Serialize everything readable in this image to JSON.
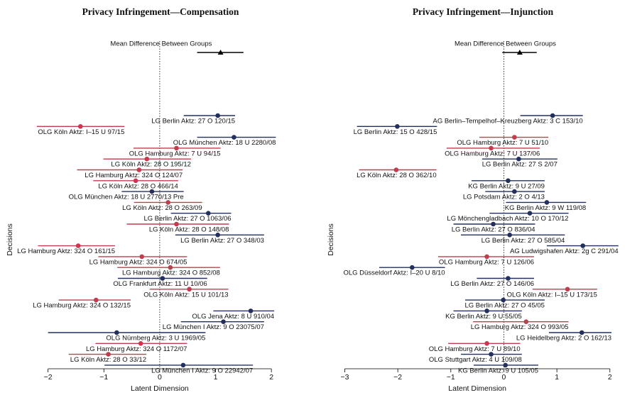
{
  "chart_data": [
    {
      "type": "forest",
      "title": "Privacy Infringement—Compensation",
      "xlabel": "Latent Dimension",
      "ylabel": "Decisions",
      "xlim": [
        -2.25,
        2.1
      ],
      "xticks": [
        {
          "value": -2,
          "label": "−2"
        },
        {
          "value": -1,
          "label": "−1"
        },
        0,
        1,
        2
      ],
      "reference_line": 0,
      "mean_difference": {
        "label": "Mean Difference Between Groups",
        "estimate": 1.09,
        "lower": 0.67,
        "upper": 1.5
      },
      "labels": [
        "LG Berlin Aktz: 27 O 120/15",
        "OLG Köln Aktz: I–15 U 97/15",
        "OLG München Aktz: 18 U 2280/08",
        "OLG Hamburg Aktz: 7 U 94/15",
        "LG Köln Aktz: 28 O 195/12",
        "LG Hamburg Aktz: 324 O 124/07",
        "LG Köln Aktz: 28 O 466/14",
        "OLG München Aktz: 18 U 2770/13 Pre",
        "LG Köln Aktz: 28 O 263/09",
        "LG Berlin Aktz: 27 O 1063/06",
        "LG Köln Aktz: 28 O 148/08",
        "LG Berlin Aktz: 27 O 348/03",
        "LG Hamburg Aktz: 324 O 161/15",
        "LG Hamburg Aktz: 324 O 674/05",
        "LG Hamburg Aktz: 324 O 852/08",
        "OLG Frankfurt Aktz: 11 U 10/06",
        "OLG Köln Aktz: 15 U 101/13",
        "LG Hamburg Aktz: 324 O 132/15",
        "OLG Jena Aktz: 8 U 910/04",
        "LG München I Aktz: 9 O 23075/07",
        "OLG Nürnberg Aktz: 3 U 1969/05",
        "LG Hamburg Aktz: 324 O 1172/07",
        "LG Köln Aktz: 28 O 33/12",
        "LG München I Aktz: 9 O 22942/07"
      ],
      "estimates": [
        1.04,
        -1.42,
        1.33,
        0.3,
        -0.23,
        -0.37,
        -0.43,
        -0.14,
        0.15,
        0.87,
        0.3,
        1.04,
        -1.46,
        -0.32,
        0.19,
        0.05,
        0.53,
        -1.14,
        1.63,
        1.14,
        -0.77,
        -0.34,
        -0.92,
        0.42
      ],
      "lower": [
        0.43,
        -2.2,
        0.67,
        -0.47,
        -1.01,
        -1.48,
        -1.19,
        -0.68,
        -0.46,
        0.2,
        -0.59,
        0.28,
        -2.18,
        -1.1,
        -0.76,
        -0.75,
        -0.18,
        -1.81,
        0.96,
        0.38,
        -2.0,
        -1.15,
        -1.63,
        -0.99
      ],
      "upper": [
        1.35,
        -0.63,
        2.08,
        1.09,
        0.56,
        0.41,
        0.33,
        0.43,
        0.76,
        1.28,
        1.24,
        1.87,
        -0.8,
        0.49,
        1.08,
        0.85,
        1.23,
        -0.52,
        2.05,
        1.87,
        0.82,
        0.49,
        -0.24,
        1.67
      ],
      "colors": [
        "#23305e",
        "#c23b4e",
        "#23305e",
        "#c23b4e",
        "#c23b4e",
        "#c23b4e",
        "#c23b4e",
        "#23305e",
        "#c23b4e",
        "#23305e",
        "#c23b4e",
        "#23305e",
        "#c23b4e",
        "#c23b4e",
        "#c23b4e",
        "#23305e",
        "#c23b4e",
        "#c23b4e",
        "#23305e",
        "#23305e",
        "#23305e",
        "#c23b4e",
        "#c23b4e",
        "#23305e"
      ]
    },
    {
      "type": "forest",
      "title": "Privacy Infringement—Injunction",
      "xlabel": "Latent Dimension",
      "ylabel": "Decisions",
      "xlim": [
        -3.1,
        2.15
      ],
      "xticks": [
        {
          "value": -3,
          "label": "−3"
        },
        {
          "value": -2,
          "label": "−2"
        },
        {
          "value": -1,
          "label": "−1"
        },
        0,
        1,
        2
      ],
      "reference_line": 0,
      "mean_difference": {
        "label": "Mean Difference Between Groups",
        "estimate": 0.3,
        "lower": -0.03,
        "upper": 0.62
      },
      "labels": [
        "AG Berlin–Tempelhof–Kreuzberg Aktz: 3 C 153/10",
        "LG Berlin Aktz: 15 O 428/15",
        "OLG Hamburg Aktz: 7 U 51/10",
        "OLG Hamburg Aktz: 7 U 137/06",
        "LG Berlin Aktz: 27 S 2/07",
        "LG Köln Aktz: 28 O 362/10",
        "KG Berlin Aktz: 9 U 27/09",
        "LG Potsdam Aktz: 2 O 4/13",
        "KG Berlin Aktz: 9 W 119/08",
        "LG Mönchengladbach Aktz: 10 O 170/12",
        "LG Berlin Aktz: 27 O 836/04",
        "LG Berlin Aktz: 27 O 585/04",
        "AG Ludwigshafen Aktz: 2g C 291/04",
        "OLG Hamburg Aktz: 7 U 126/06",
        "OLG Düsseldorf Aktz: I–20 U 8/10",
        "LG Berlin Aktz: 27 O 146/06",
        "OLG Köln Aktz: I–15 U 173/15",
        "LG Berlin Aktz: 27 O 45/05",
        "KG Berlin Aktz: 9 U 55/05",
        "LG Hamburg Aktz: 324 O 993/05",
        "LG Heidelberg Aktz: 2 O 162/13",
        "OLG Hamburg Aktz: 7 U 89/10",
        "OLG Stuttgart Aktz: 4 U 109/08",
        "KG Berlin Aktz: 9 U 105/05"
      ],
      "estimates": [
        0.92,
        -2.01,
        0.2,
        -0.24,
        0.28,
        -2.03,
        0.08,
        0.2,
        0.81,
        0.49,
        -0.2,
        0.11,
        1.49,
        -0.32,
        -1.73,
        0.08,
        1.2,
        -0.01,
        -0.32,
        0.42,
        1.47,
        -0.32,
        -0.24,
        0.03
      ],
      "lower": [
        0.31,
        -2.77,
        -0.46,
        -1.08,
        -0.41,
        -2.73,
        -0.61,
        -0.35,
        0.04,
        -0.27,
        -0.95,
        -0.81,
        0.81,
        -1.24,
        -2.35,
        -0.51,
        0.54,
        -0.73,
        -0.95,
        -0.58,
        0.85,
        -1.05,
        -0.81,
        -0.57
      ],
      "upper": [
        1.49,
        -1.26,
        0.84,
        0.68,
        1.01,
        -1.27,
        0.77,
        0.77,
        1.55,
        1.22,
        0.59,
        1.15,
        2.16,
        0.57,
        -1.11,
        0.57,
        1.76,
        0.77,
        0.34,
        1.22,
        2.03,
        0.31,
        0.34,
        0.65
      ],
      "colors": [
        "#23305e",
        "#23305e",
        "#c23b4e",
        "#c23b4e",
        "#23305e",
        "#c23b4e",
        "#23305e",
        "#23305e",
        "#23305e",
        "#23305e",
        "#23305e",
        "#23305e",
        "#23305e",
        "#c23b4e",
        "#23305e",
        "#23305e",
        "#c23b4e",
        "#23305e",
        "#23305e",
        "#c23b4e",
        "#23305e",
        "#c23b4e",
        "#23305e",
        "#23305e"
      ]
    }
  ]
}
